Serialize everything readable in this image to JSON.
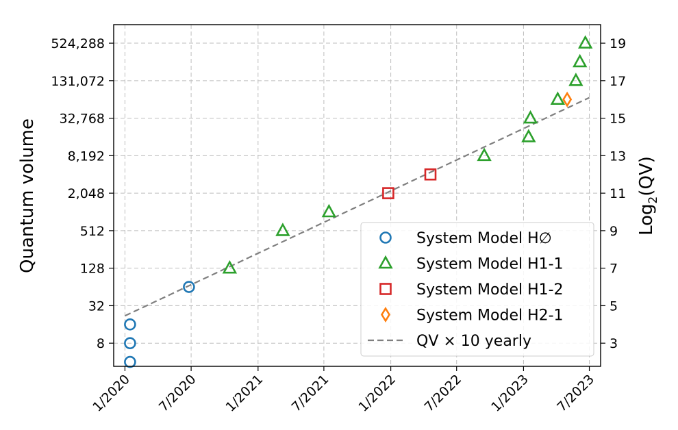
{
  "chart_data": {
    "type": "scatter",
    "ylabel": "Quantum volume",
    "y2label_main": "Log",
    "y2label_sub": "2",
    "y2label_tail": "(QV)",
    "x_ticks": [
      {
        "date": "2020-01-01",
        "label": "1/2020"
      },
      {
        "date": "2020-07-01",
        "label": "7/2020"
      },
      {
        "date": "2021-01-01",
        "label": "1/2021"
      },
      {
        "date": "2021-07-01",
        "label": "7/2021"
      },
      {
        "date": "2022-01-01",
        "label": "1/2022"
      },
      {
        "date": "2022-07-01",
        "label": "7/2022"
      },
      {
        "date": "2023-01-01",
        "label": "1/2023"
      },
      {
        "date": "2023-07-01",
        "label": "7/2023"
      }
    ],
    "xlim": [
      "2019-12-01",
      "2023-08-01"
    ],
    "y_scale": "log2",
    "ylim": [
      3.4,
      1040000
    ],
    "y_ticks": [
      {
        "value": 8,
        "label": "8"
      },
      {
        "value": 32,
        "label": "32"
      },
      {
        "value": 128,
        "label": "128"
      },
      {
        "value": 512,
        "label": "512"
      },
      {
        "value": 2048,
        "label": "2,048"
      },
      {
        "value": 8192,
        "label": "8,192"
      },
      {
        "value": 32768,
        "label": "32,768"
      },
      {
        "value": 131072,
        "label": "131,072"
      },
      {
        "value": 524288,
        "label": "524,288"
      }
    ],
    "y2_ticks": [
      {
        "value": 3,
        "label": "3"
      },
      {
        "value": 5,
        "label": "5"
      },
      {
        "value": 7,
        "label": "7"
      },
      {
        "value": 9,
        "label": "9"
      },
      {
        "value": 11,
        "label": "11"
      },
      {
        "value": 13,
        "label": "13"
      },
      {
        "value": 15,
        "label": "15"
      },
      {
        "value": 17,
        "label": "17"
      },
      {
        "value": 19,
        "label": "19"
      }
    ],
    "grid": true,
    "legend_position": "lower-right",
    "series": [
      {
        "name": "System Model H∅",
        "marker": "circle",
        "color": "#1f77b4",
        "points": [
          {
            "x": "2020-01-15",
            "y": 4
          },
          {
            "x": "2020-01-15",
            "y": 8
          },
          {
            "x": "2020-01-15",
            "y": 16
          },
          {
            "x": "2020-06-25",
            "y": 64
          }
        ]
      },
      {
        "name": "System Model H1-1",
        "marker": "triangle",
        "color": "#2ca02c",
        "points": [
          {
            "x": "2020-10-15",
            "y": 128
          },
          {
            "x": "2021-03-10",
            "y": 512
          },
          {
            "x": "2021-07-15",
            "y": 1024
          },
          {
            "x": "2022-09-15",
            "y": 8192
          },
          {
            "x": "2023-01-15",
            "y": 16384
          },
          {
            "x": "2023-01-20",
            "y": 32768
          },
          {
            "x": "2023-04-05",
            "y": 65536
          },
          {
            "x": "2023-05-25",
            "y": 131072
          },
          {
            "x": "2023-06-05",
            "y": 262144
          },
          {
            "x": "2023-06-20",
            "y": 524288
          }
        ]
      },
      {
        "name": "System Model H1-2",
        "marker": "square",
        "color": "#d62728",
        "points": [
          {
            "x": "2021-12-25",
            "y": 2048
          },
          {
            "x": "2022-04-20",
            "y": 4096
          }
        ]
      },
      {
        "name": "System Model H2-1",
        "marker": "diamond",
        "color": "#ff7f0e",
        "points": [
          {
            "x": "2023-05-01",
            "y": 65536
          }
        ]
      }
    ],
    "trend": {
      "name": "QV × 10 yearly",
      "style": "dashed",
      "color": "#7f7f7f",
      "start": {
        "x": "2020-01-01",
        "y": 22
      },
      "end": {
        "x": "2023-07-01",
        "y": 70000
      }
    }
  }
}
